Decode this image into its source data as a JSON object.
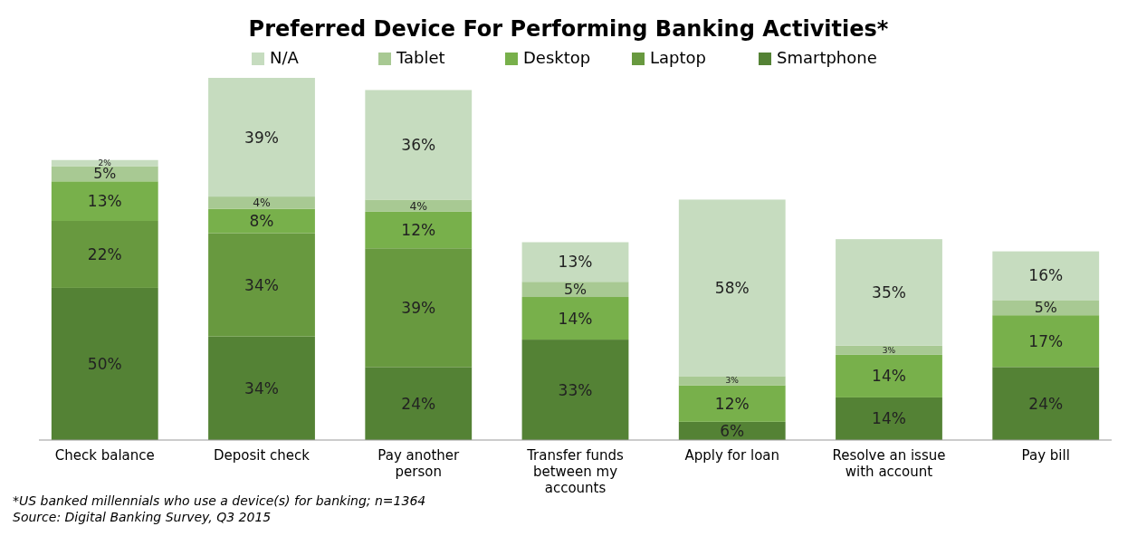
{
  "chart_data": {
    "type": "bar",
    "stacked": true,
    "title": "Preferred Device For Performing Banking Activities*",
    "categories": [
      "Check balance",
      "Deposit check",
      "Pay another person",
      "Transfer funds between my accounts",
      "Apply for loan",
      "Resolve an issue with account",
      "Pay bill"
    ],
    "series": [
      {
        "name": "Smartphone",
        "color": "#548235",
        "values": [
          50,
          34,
          24,
          33,
          6,
          14,
          24
        ],
        "value_labels": [
          "50%",
          "34%",
          "24%",
          "33%",
          "6%",
          "14%",
          "24%"
        ]
      },
      {
        "name": "Laptop",
        "color": "#68993f",
        "values": [
          22,
          34,
          39,
          null,
          null,
          null,
          null
        ],
        "value_labels": [
          "22%",
          "34%",
          "39%",
          null,
          null,
          null,
          null
        ]
      },
      {
        "name": "Desktop",
        "color": "#78b04b",
        "values": [
          13,
          8,
          12,
          14,
          12,
          14,
          17
        ],
        "value_labels": [
          "13%",
          "8%",
          "12%",
          "14%",
          "12%",
          "14%",
          "17%"
        ]
      },
      {
        "name": "Tablet",
        "color": "#a8c993",
        "values": [
          5,
          4,
          4,
          5,
          3,
          3,
          5
        ],
        "value_labels": [
          "5%",
          "4%",
          "4%",
          "5%",
          "3%",
          "3%",
          "5%"
        ]
      },
      {
        "name": "N/A",
        "color": "#c6dcbf",
        "values": [
          2,
          39,
          36,
          13,
          58,
          35,
          16
        ],
        "value_labels": [
          "2%",
          "39%",
          "36%",
          "13%",
          "58%",
          "35%",
          "16%"
        ]
      }
    ],
    "legend": "top",
    "annotations": [
      "*US banked millennials who use a device(s) for banking; n=1364",
      "Source: Digital Banking Survey, Q3 2015"
    ]
  }
}
